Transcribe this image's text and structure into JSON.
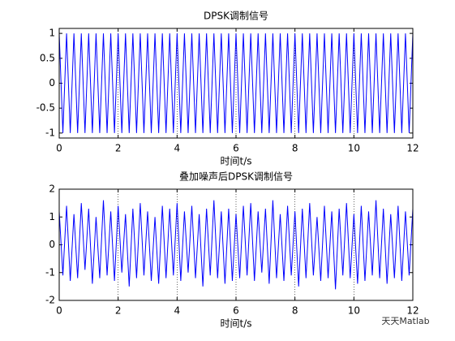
{
  "chart_data": [
    {
      "type": "line",
      "title": "DPSK调制信号",
      "xlabel": "时间t/s",
      "xlim": [
        0,
        12
      ],
      "xticks": [
        0,
        2,
        4,
        6,
        8,
        10,
        12
      ],
      "ylim": [
        -1.1,
        1.1
      ],
      "yticks": [
        -1,
        -0.5,
        0,
        0.5,
        1
      ],
      "xgrid": true,
      "x": [
        0,
        0.125,
        0.25,
        0.375,
        0.5,
        0.625,
        0.75,
        0.875,
        1,
        1.125,
        1.25,
        1.375,
        1.5,
        1.625,
        1.75,
        1.875,
        2,
        2.125,
        2.25,
        2.375,
        2.5,
        2.625,
        2.75,
        2.875,
        3,
        3.125,
        3.25,
        3.375,
        3.5,
        3.625,
        3.75,
        3.875,
        4,
        4.125,
        4.25,
        4.375,
        4.5,
        4.625,
        4.75,
        4.875,
        5,
        5.125,
        5.25,
        5.375,
        5.5,
        5.625,
        5.75,
        5.875,
        6,
        6.125,
        6.25,
        6.375,
        6.5,
        6.625,
        6.75,
        6.875,
        7,
        7.125,
        7.25,
        7.375,
        7.5,
        7.625,
        7.75,
        7.875,
        8,
        8.125,
        8.25,
        8.375,
        8.5,
        8.625,
        8.75,
        8.875,
        9,
        9.125,
        9.25,
        9.375,
        9.5,
        9.625,
        9.75,
        9.875,
        10,
        10.125,
        10.25,
        10.375,
        10.5,
        10.625,
        10.75,
        10.875,
        11,
        11.125,
        11.25,
        11.375,
        11.5,
        11.625,
        11.75,
        11.875,
        12
      ],
      "series": [
        {
          "color": "#0000ff",
          "values": [
            1,
            -1,
            1,
            -1,
            1,
            -1,
            1,
            -1,
            1,
            -1,
            1,
            -1,
            1,
            -1,
            1,
            -1,
            1,
            -1,
            1,
            -1,
            1,
            -1,
            1,
            -1,
            1,
            -1,
            1,
            -1,
            1,
            -1,
            1,
            -1,
            1,
            -1,
            1,
            -1,
            1,
            -1,
            1,
            -1,
            1,
            -1,
            1,
            -1,
            1,
            -1,
            1,
            -1,
            1,
            -1,
            1,
            -1,
            1,
            -1,
            1,
            -1,
            1,
            -1,
            1,
            -1,
            1,
            -1,
            1,
            -1,
            1,
            -1,
            1,
            -1,
            1,
            -1,
            1,
            -1,
            1,
            -1,
            1,
            -1,
            1,
            -1,
            1,
            -1,
            1,
            -1,
            1,
            -1,
            1,
            -1,
            1,
            -1,
            1,
            -1,
            1,
            -1,
            1,
            -1,
            1,
            -1,
            1
          ]
        }
      ]
    },
    {
      "type": "line",
      "title": "叠加噪声后DPSK调制信号",
      "xlabel": "时间t/s",
      "xlim": [
        0,
        12
      ],
      "xticks": [
        0,
        2,
        4,
        6,
        8,
        10,
        12
      ],
      "ylim": [
        -2,
        2
      ],
      "yticks": [
        -2,
        -1,
        0,
        1,
        2
      ],
      "xgrid": true,
      "x": [
        0,
        0.125,
        0.25,
        0.375,
        0.5,
        0.625,
        0.75,
        0.875,
        1,
        1.125,
        1.25,
        1.375,
        1.5,
        1.625,
        1.75,
        1.875,
        2,
        2.125,
        2.25,
        2.375,
        2.5,
        2.625,
        2.75,
        2.875,
        3,
        3.125,
        3.25,
        3.375,
        3.5,
        3.625,
        3.75,
        3.875,
        4,
        4.125,
        4.25,
        4.375,
        4.5,
        4.625,
        4.75,
        4.875,
        5,
        5.125,
        5.25,
        5.375,
        5.5,
        5.625,
        5.75,
        5.875,
        6,
        6.125,
        6.25,
        6.375,
        6.5,
        6.625,
        6.75,
        6.875,
        7,
        7.125,
        7.25,
        7.375,
        7.5,
        7.625,
        7.75,
        7.875,
        8,
        8.125,
        8.25,
        8.375,
        8.5,
        8.625,
        8.75,
        8.875,
        9,
        9.125,
        9.25,
        9.375,
        9.5,
        9.625,
        9.75,
        9.875,
        10,
        10.125,
        10.25,
        10.375,
        10.5,
        10.625,
        10.75,
        10.875,
        11,
        11.125,
        11.25,
        11.375,
        11.5,
        11.625,
        11.75,
        11.875,
        12
      ],
      "series": [
        {
          "color": "#0000ff",
          "values": [
            1.2,
            -1.1,
            1.4,
            -1.3,
            1.1,
            -1.2,
            1.5,
            -0.9,
            1.3,
            -1.4,
            1.0,
            -1.2,
            1.6,
            -1.1,
            1.2,
            -1.3,
            1.4,
            -1.0,
            1.1,
            -1.5,
            1.3,
            -1.2,
            1.5,
            -1.1,
            1.2,
            -1.3,
            1.0,
            -1.4,
            1.4,
            -1.2,
            1.3,
            -1.1,
            1.5,
            -1.3,
            1.2,
            -1.0,
            1.4,
            -1.2,
            1.1,
            -1.5,
            1.3,
            -1.1,
            1.6,
            -1.2,
            1.2,
            -1.4,
            1.3,
            -1.3,
            1.1,
            -1.2,
            1.4,
            -1.1,
            1.5,
            -1.3,
            1.2,
            -1.0,
            1.3,
            -1.4,
            1.6,
            -1.2,
            1.1,
            -1.3,
            1.4,
            -1.1,
            1.2,
            -1.5,
            1.3,
            -1.2,
            1.5,
            -1.1,
            1.0,
            -1.3,
            1.4,
            -1.2,
            1.2,
            -1.6,
            1.3,
            -1.1,
            1.5,
            -1.2,
            1.1,
            -1.4,
            1.4,
            -1.3,
            1.2,
            -1.1,
            1.6,
            -1.2,
            1.3,
            -1.4,
            1.1,
            -1.2,
            1.4,
            -1.3,
            1.2,
            -1.1,
            1.3
          ]
        }
      ]
    }
  ],
  "watermark": "天天Matlab"
}
